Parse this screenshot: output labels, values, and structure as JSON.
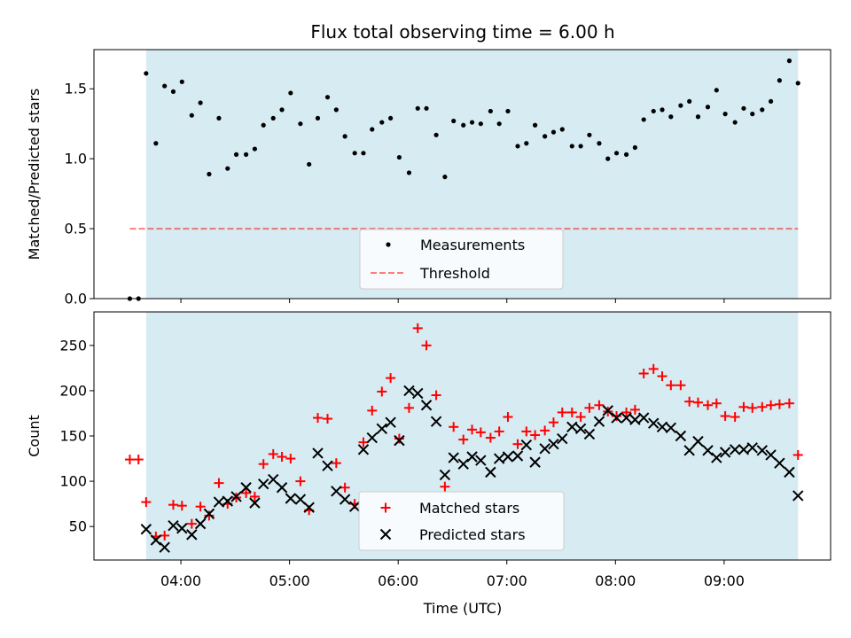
{
  "chart_data": {
    "title": "Flux total observing time = 6.00 h",
    "xlabel": "Time (UTC)",
    "x_tick_labels": [
      "04:00",
      "05:00",
      "06:00",
      "07:00",
      "08:00",
      "09:00"
    ],
    "x_tick_hours": [
      4,
      5,
      6,
      7,
      8,
      9
    ],
    "x_range_hours": [
      3.2,
      9.98
    ],
    "observing_window_hours": [
      3.68,
      9.68
    ],
    "colors": {
      "window": "#add8e6",
      "measurements": "#000000",
      "threshold": "#ff0000",
      "matched": "#ff0000",
      "predicted": "#000000"
    },
    "panels": [
      {
        "type": "scatter",
        "ylabel": "Matched/Predicted stars",
        "ylim": [
          0,
          1.78
        ],
        "yticks": [
          0,
          0.5,
          1.0,
          1.5
        ],
        "ytick_labels": [
          "0.0",
          "0.5",
          "1.0",
          "1.5"
        ],
        "legend_placement": "lower-center",
        "threshold": {
          "name": "Threshold",
          "value": 0.5,
          "x_range_hours": [
            3.53,
            9.68
          ]
        },
        "series": [
          {
            "name": "Measurements",
            "marker": "dot",
            "x": [
              3.53,
              3.61,
              3.68,
              3.77,
              3.85,
              3.93,
              4.01,
              4.1,
              4.18,
              4.26,
              4.35,
              4.43,
              4.51,
              4.6,
              4.68,
              4.76,
              4.85,
              4.93,
              5.01,
              5.1,
              5.18,
              5.26,
              5.35,
              5.43,
              5.51,
              5.6,
              5.68,
              5.76,
              5.85,
              5.93,
              6.01,
              6.1,
              6.18,
              6.26,
              6.35,
              6.43,
              6.51,
              6.6,
              6.68,
              6.76,
              6.85,
              6.93,
              7.01,
              7.1,
              7.18,
              7.26,
              7.35,
              7.43,
              7.51,
              7.6,
              7.68,
              7.76,
              7.85,
              7.93,
              8.01,
              8.1,
              8.18,
              8.26,
              8.35,
              8.43,
              8.51,
              8.6,
              8.68,
              8.76,
              8.85,
              8.93,
              9.01,
              9.1,
              9.18,
              9.26,
              9.35,
              9.43,
              9.51,
              9.6,
              9.68
            ],
            "y": [
              0.0,
              0.0,
              1.61,
              1.11,
              1.52,
              1.48,
              1.55,
              1.31,
              1.4,
              0.89,
              1.29,
              0.93,
              1.03,
              1.03,
              1.07,
              1.24,
              1.29,
              1.35,
              1.47,
              1.25,
              0.96,
              1.29,
              1.44,
              1.35,
              1.16,
              1.04,
              1.04,
              1.21,
              1.26,
              1.29,
              1.01,
              0.9,
              1.36,
              1.36,
              1.17,
              0.87,
              1.27,
              1.24,
              1.26,
              1.25,
              1.34,
              1.25,
              1.34,
              1.09,
              1.11,
              1.24,
              1.16,
              1.19,
              1.21,
              1.09,
              1.09,
              1.17,
              1.11,
              1.0,
              1.04,
              1.03,
              1.08,
              1.28,
              1.34,
              1.35,
              1.3,
              1.38,
              1.41,
              1.3,
              1.37,
              1.49,
              1.32,
              1.26,
              1.36,
              1.32,
              1.35,
              1.41,
              1.56,
              1.7,
              1.54
            ]
          }
        ]
      },
      {
        "type": "scatter",
        "ylabel": "Count",
        "ylim": [
          13,
          287
        ],
        "yticks": [
          50,
          100,
          150,
          200,
          250
        ],
        "ytick_labels": [
          "50",
          "100",
          "150",
          "200",
          "250"
        ],
        "legend_placement": "lower-center",
        "series": [
          {
            "name": "Matched stars",
            "marker": "plus",
            "x": [
              3.53,
              3.61,
              3.68,
              3.77,
              3.85,
              3.93,
              4.01,
              4.1,
              4.18,
              4.26,
              4.35,
              4.43,
              4.51,
              4.6,
              4.68,
              4.76,
              4.85,
              4.93,
              5.01,
              5.1,
              5.18,
              5.26,
              5.35,
              5.43,
              5.51,
              5.6,
              5.68,
              5.76,
              5.85,
              5.93,
              6.01,
              6.1,
              6.18,
              6.26,
              6.35,
              6.43,
              6.51,
              6.6,
              6.68,
              6.76,
              6.85,
              6.93,
              7.01,
              7.1,
              7.18,
              7.26,
              7.35,
              7.43,
              7.51,
              7.6,
              7.68,
              7.76,
              7.85,
              7.93,
              8.01,
              8.1,
              8.18,
              8.26,
              8.35,
              8.43,
              8.51,
              8.6,
              8.68,
              8.76,
              8.85,
              8.93,
              9.01,
              9.1,
              9.18,
              9.26,
              9.35,
              9.43,
              9.51,
              9.6,
              9.68
            ],
            "y": [
              124,
              124,
              77,
              39,
              40,
              74,
              73,
              53,
              72,
              62,
              98,
              75,
              82,
              87,
              83,
              119,
              130,
              127,
              125,
              100,
              68,
              170,
              169,
              120,
              93,
              75,
              143,
              178,
              199,
              214,
              147,
              181,
              269,
              250,
              195,
              94,
              160,
              146,
              157,
              154,
              148,
              155,
              171,
              141,
              155,
              151,
              156,
              165,
              176,
              176,
              171,
              181,
              184,
              177,
              172,
              176,
              179,
              219,
              224,
              216,
              206,
              206,
              188,
              187,
              184,
              186,
              172,
              171,
              182,
              181,
              182,
              184,
              185,
              186,
              129
            ]
          },
          {
            "name": "Predicted stars",
            "marker": "x",
            "x": [
              3.68,
              3.77,
              3.85,
              3.93,
              4.01,
              4.1,
              4.18,
              4.26,
              4.35,
              4.43,
              4.51,
              4.6,
              4.68,
              4.76,
              4.85,
              4.93,
              5.01,
              5.1,
              5.18,
              5.26,
              5.35,
              5.43,
              5.51,
              5.6,
              5.68,
              5.76,
              5.85,
              5.93,
              6.01,
              6.1,
              6.18,
              6.26,
              6.35,
              6.43,
              6.51,
              6.6,
              6.68,
              6.76,
              6.85,
              6.93,
              7.01,
              7.1,
              7.18,
              7.26,
              7.35,
              7.43,
              7.51,
              7.6,
              7.68,
              7.76,
              7.85,
              7.93,
              8.01,
              8.1,
              8.18,
              8.26,
              8.35,
              8.43,
              8.51,
              8.6,
              8.68,
              8.76,
              8.85,
              8.93,
              9.01,
              9.1,
              9.18,
              9.26,
              9.35,
              9.43,
              9.51,
              9.6,
              9.68
            ],
            "y": [
              47,
              35,
              27,
              51,
              48,
              41,
              53,
              64,
              77,
              78,
              83,
              93,
              76,
              97,
              102,
              93,
              81,
              80,
              71,
              131,
              117,
              89,
              80,
              72,
              135,
              148,
              158,
              165,
              145,
              200,
              197,
              184,
              166,
              107,
              126,
              119,
              127,
              123,
              110,
              125,
              127,
              128,
              140,
              121,
              136,
              141,
              147,
              160,
              158,
              152,
              166,
              178,
              170,
              170,
              168,
              170,
              164,
              160,
              159,
              150,
              134,
              144,
              134,
              126,
              132,
              135,
              135,
              137,
              134,
              129,
              120,
              110,
              84
            ]
          }
        ]
      }
    ]
  }
}
